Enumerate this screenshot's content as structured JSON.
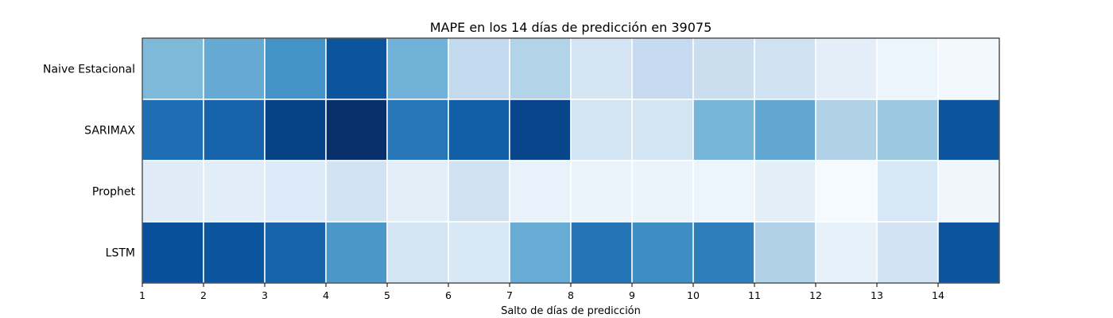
{
  "chart_data": {
    "type": "heatmap",
    "title": "MAPE en los 14 días de predicción en 39075",
    "xlabel": "Salto de días de predicción",
    "ylabel": "",
    "rows": [
      "Naive Estacional",
      "SARIMAX",
      "Prophet",
      "LSTM"
    ],
    "x_ticks": [
      "1",
      "2",
      "3",
      "4",
      "5",
      "6",
      "7",
      "8",
      "9",
      "10",
      "11",
      "12",
      "13",
      "14"
    ],
    "colormap": "Blues",
    "grid": true,
    "values": [
      [
        0.45,
        0.52,
        0.62,
        0.86,
        0.48,
        0.26,
        0.31,
        0.17,
        0.25,
        0.23,
        0.2,
        0.1,
        0.05,
        0.02
      ],
      [
        0.76,
        0.8,
        0.93,
        1.0,
        0.73,
        0.82,
        0.92,
        0.18,
        0.18,
        0.47,
        0.53,
        0.32,
        0.38,
        0.86
      ],
      [
        0.12,
        0.11,
        0.13,
        0.19,
        0.1,
        0.2,
        0.07,
        0.06,
        0.06,
        0.05,
        0.1,
        0.01,
        0.16,
        0.04
      ],
      [
        0.88,
        0.86,
        0.8,
        0.6,
        0.18,
        0.15,
        0.51,
        0.74,
        0.64,
        0.7,
        0.32,
        0.08,
        0.19,
        0.86
      ]
    ]
  }
}
